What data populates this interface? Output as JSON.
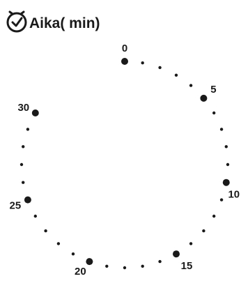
{
  "header": {
    "icon": "clock-icon",
    "title": "Aika( min)"
  },
  "dial": {
    "ticks_visible": 0,
    "major_labels": [
      {
        "minute": 0,
        "text": "0"
      },
      {
        "minute": 5,
        "text": "5"
      },
      {
        "minute": 10,
        "text": "10"
      },
      {
        "minute": 15,
        "text": "15"
      },
      {
        "minute": 20,
        "text": "20"
      },
      {
        "minute": 25,
        "text": "25"
      },
      {
        "minute": 30,
        "text": "30"
      }
    ],
    "last_minute_shown": 30,
    "gap_minutes": [
      31,
      32,
      33,
      34,
      35
    ],
    "color": "#1a1a1a"
  }
}
